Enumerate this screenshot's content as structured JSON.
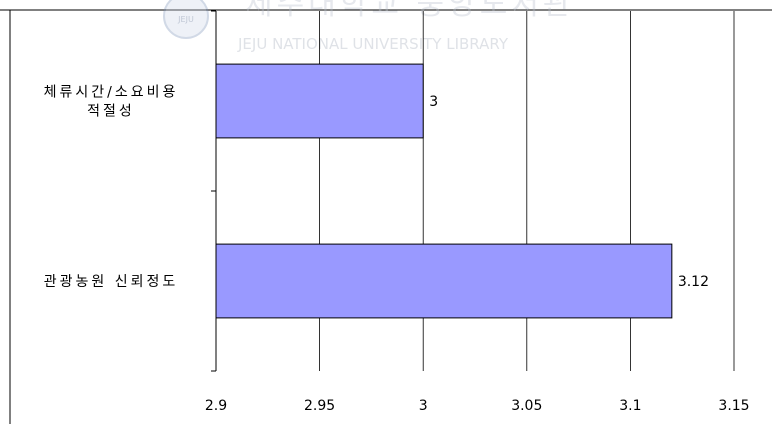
{
  "watermark": {
    "korean": "제주대학교 중앙도서관",
    "english": "JEJU NATIONAL UNIVERSITY LIBRARY",
    "seal_text": "JEJU"
  },
  "chart_data": {
    "type": "bar",
    "orientation": "horizontal",
    "categories": [
      "체류시간/소요비용 적절성",
      "관광농원 신뢰정도"
    ],
    "category_lines": [
      [
        "체류시간/소요비용",
        "적절성"
      ],
      [
        "관광농원 신뢰정도"
      ]
    ],
    "values": [
      3,
      3.12
    ],
    "data_labels": [
      "3",
      "3.12"
    ],
    "xlim": [
      2.9,
      3.15
    ],
    "xticks": [
      2.9,
      2.95,
      3,
      3.05,
      3.1,
      3.15
    ],
    "xtick_labels": [
      "2.9",
      "2.95",
      "3",
      "3.05",
      "3.1",
      "3.15"
    ],
    "grid": true,
    "bar_color": "#9999ff",
    "title": "",
    "xlabel": "",
    "ylabel": ""
  }
}
